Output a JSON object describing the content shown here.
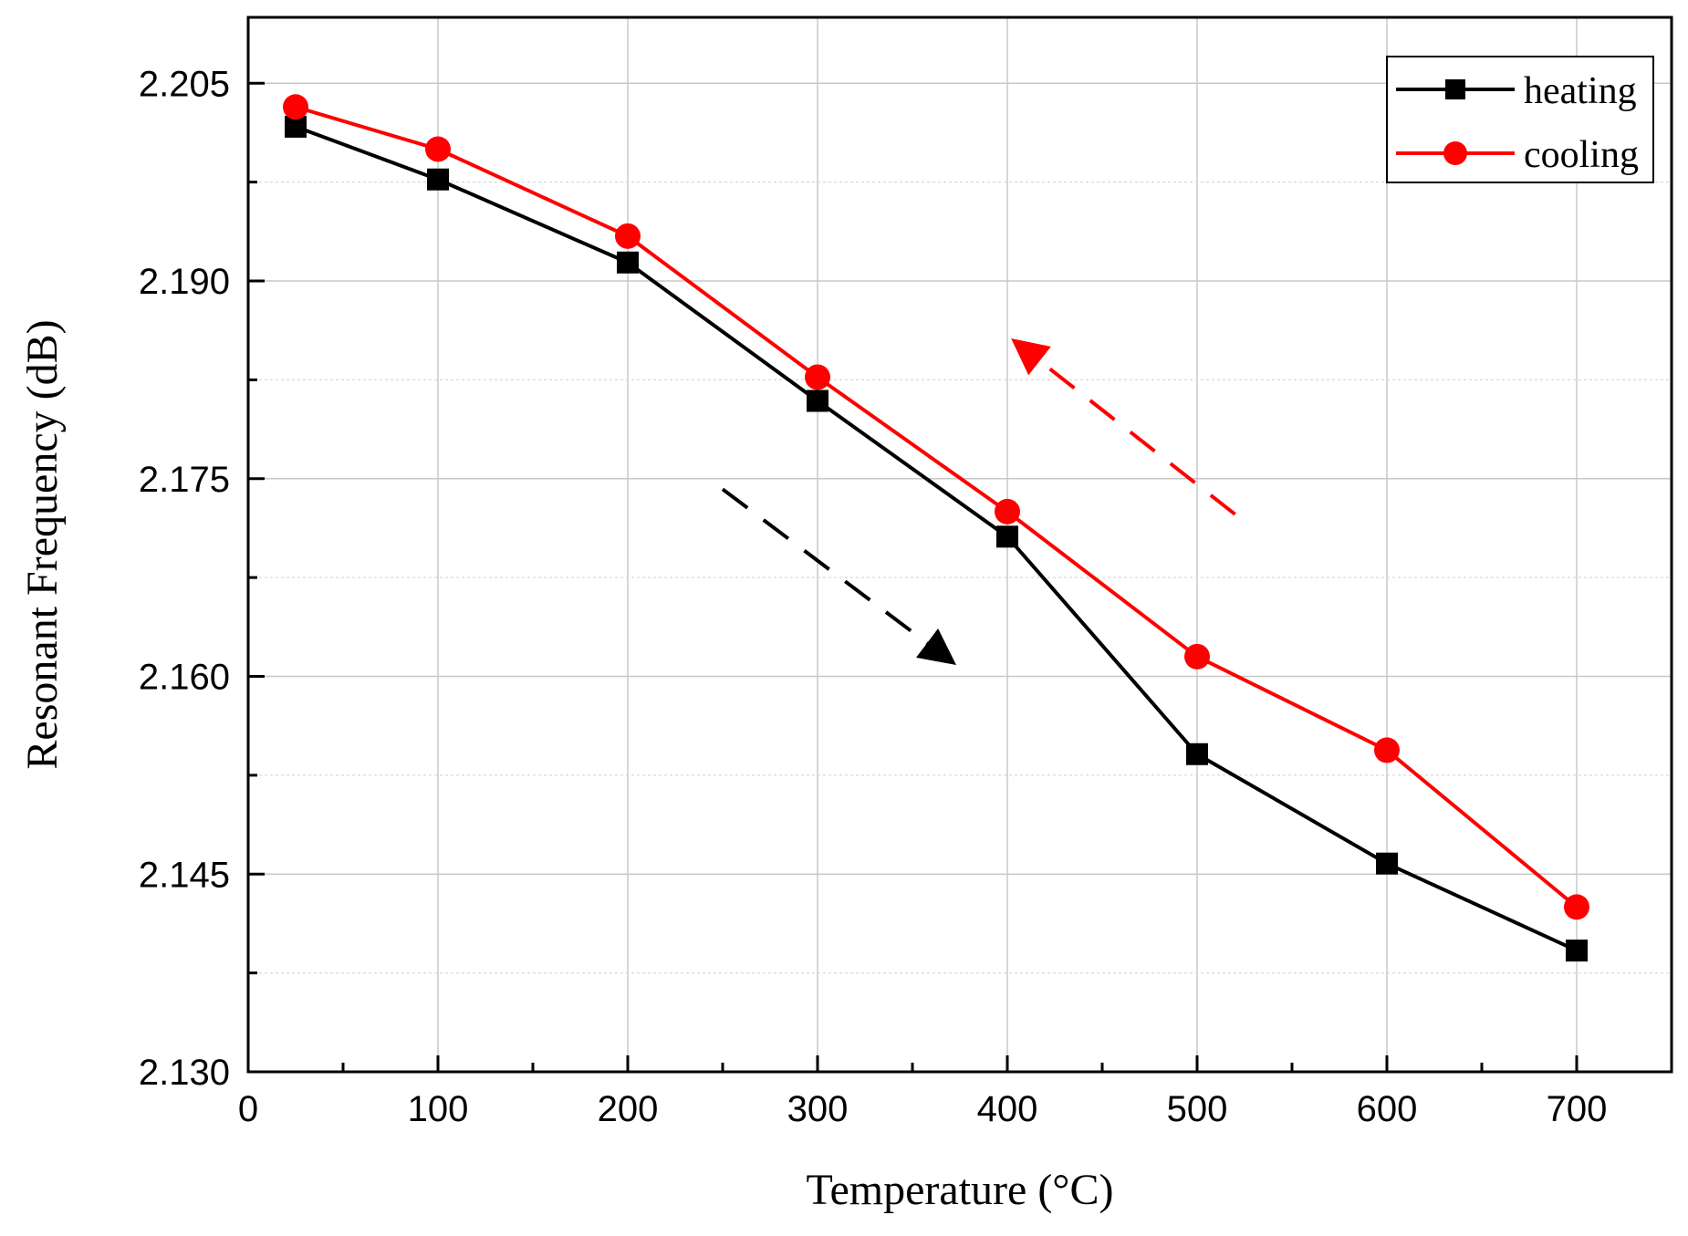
{
  "chart_data": {
    "type": "line",
    "title": "",
    "xlabel": "Temperature (°C)",
    "ylabel": "Resonant  Frequency (dB)",
    "xlim": [
      0,
      750
    ],
    "ylim": [
      2.13,
      2.21
    ],
    "x_ticks": [
      0,
      100,
      200,
      300,
      400,
      500,
      600,
      700
    ],
    "x_tick_labels": [
      "0",
      "100",
      "200",
      "300",
      "400",
      "500",
      "600",
      "700"
    ],
    "x_minor_ticks": [
      50,
      150,
      250,
      350,
      450,
      550,
      650
    ],
    "y_ticks": [
      2.13,
      2.145,
      2.16,
      2.175,
      2.19,
      2.205
    ],
    "y_tick_labels": [
      "2.130",
      "2.145",
      "2.160",
      "2.175",
      "2.190",
      "2.205"
    ],
    "y_minor_ticks": [
      2.1375,
      2.1525,
      2.1675,
      2.1825,
      2.1975
    ],
    "grid": true,
    "legend_position": "top-right",
    "series": [
      {
        "name": "heating",
        "color": "#000000",
        "marker": "square",
        "x": [
          25,
          100,
          200,
          300,
          400,
          500,
          600,
          700
        ],
        "values": [
          2.2017,
          2.1977,
          2.1914,
          2.1809,
          2.1706,
          2.1541,
          2.1458,
          2.1392
        ]
      },
      {
        "name": "cooling",
        "color": "#ff0000",
        "marker": "circle",
        "x": [
          25,
          100,
          200,
          300,
          400,
          500,
          600,
          700
        ],
        "values": [
          2.2032,
          2.2,
          2.1934,
          2.1827,
          2.1725,
          2.1615,
          2.1544,
          2.1425
        ]
      }
    ],
    "annotations": [
      {
        "kind": "dashed-arrow",
        "direction": "down-right",
        "color": "#000000",
        "from": [
          250,
          2.1742
        ],
        "to": [
          370,
          2.1612
        ]
      },
      {
        "kind": "dashed-arrow",
        "direction": "up-left",
        "color": "#ff0000",
        "from": [
          520,
          2.1723
        ],
        "to": [
          405,
          2.1853
        ]
      }
    ]
  }
}
